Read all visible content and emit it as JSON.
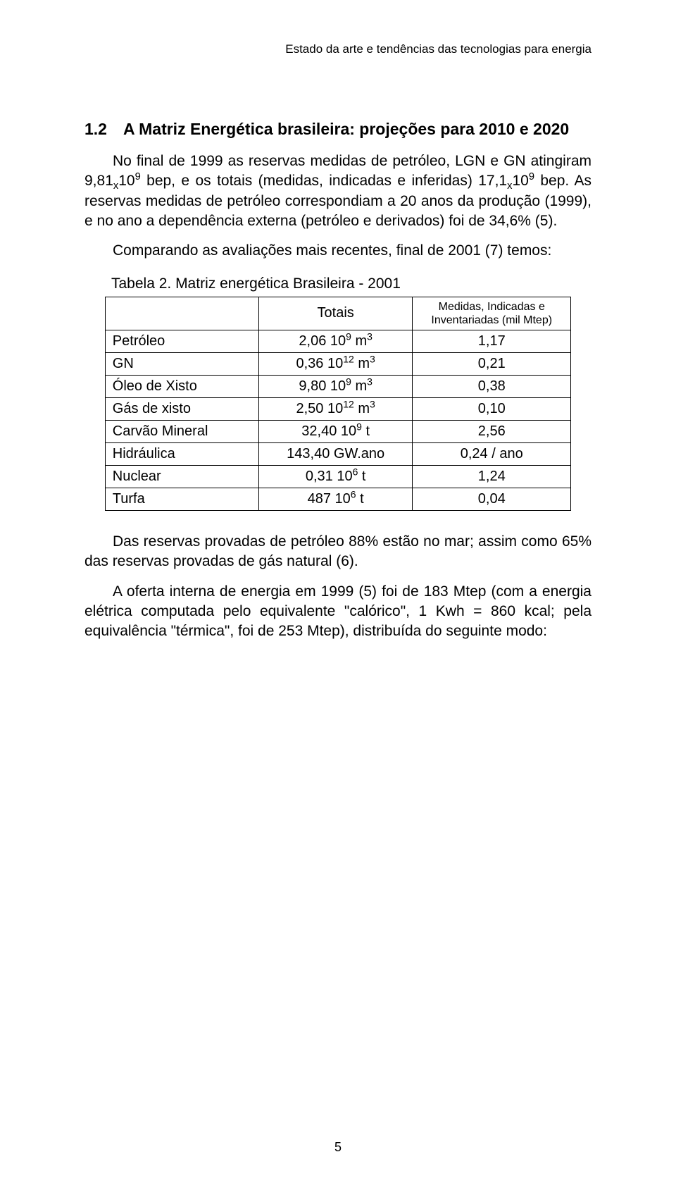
{
  "running_header": "Estado da arte e tendências das tecnologias para energia",
  "section_heading": "1.2 A Matriz Energética brasileira: projeções para 2010 e 2020",
  "para1_html": "No final de 1999 as reservas medidas de petróleo, LGN e GN atingiram 9,81<sub>x</sub>10<sup>9</sup> bep, e os totais (medidas, indicadas e inferidas) 17,1<sub>x</sub>10<sup>9</sup> bep. As reservas medidas de petróleo correspondiam a 20 anos da produção (1999), e no ano a dependência externa (petróleo e derivados) foi de 34,6% (5).",
  "para2": "Comparando as avaliações mais recentes, final de 2001 (7) temos:",
  "table_caption": "Tabela 2. Matriz energética Brasileira - 2001",
  "table": {
    "header_col2": "Totais",
    "header_col3_line1": "Medidas, Indicadas e",
    "header_col3_line2": "Inventariadas (mil Mtep)",
    "rows": [
      {
        "label": "Petróleo",
        "totals_html": "2,06 10<sup>9</sup> m<sup>3</sup>",
        "val": "1,17"
      },
      {
        "label": "GN",
        "totals_html": "0,36 10<sup>12</sup> m<sup>3</sup>",
        "val": "0,21"
      },
      {
        "label": "Óleo de Xisto",
        "totals_html": "9,80 10<sup>9</sup> m<sup>3</sup>",
        "val": "0,38"
      },
      {
        "label": "Gás de xisto",
        "totals_html": "2,50 10<sup>12</sup> m<sup>3</sup>",
        "val": "0,10"
      },
      {
        "label": "Carvão Mineral",
        "totals_html": "32,40 10<sup>9</sup> t",
        "val": "2,56"
      },
      {
        "label": "Hidráulica",
        "totals_html": "143,40 GW.ano",
        "val": "0,24 / ano"
      },
      {
        "label": "Nuclear",
        "totals_html": "0,31 10<sup>6</sup> t",
        "val": "1,24"
      },
      {
        "label": "Turfa",
        "totals_html": "487 10<sup>6</sup> t",
        "val": "0,04"
      }
    ]
  },
  "para3": "Das reservas provadas de petróleo 88% estão no mar; assim como 65% das reservas provadas de gás natural (6).",
  "para4": "A oferta interna de energia em 1999 (5) foi de 183 Mtep (com a energia elétrica computada pelo equivalente \"calórico\", 1 Kwh = 860 kcal; pela equivalência \"térmica\", foi de 253 Mtep), distribuída do seguinte modo:",
  "page_number": "5"
}
